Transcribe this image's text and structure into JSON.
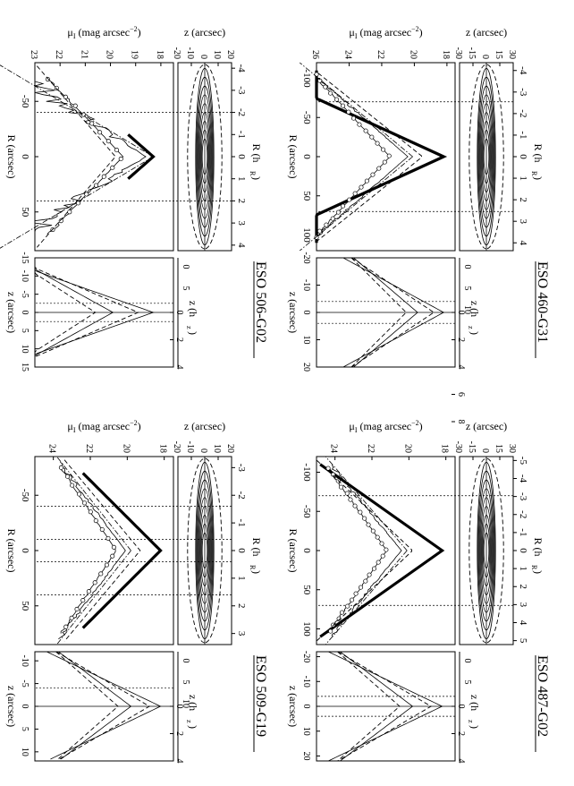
{
  "chart_data": [
    {
      "type": "line",
      "galaxy": "ESO 460-G31",
      "hR_label": "R (h",
      "hR_sub": "R",
      "hz_label": "z (h",
      "hz_sub": "z",
      "close_paren": ")",
      "R_label": "R (arcsec)",
      "z_label": "z (arcsec)",
      "mu_label": "μ",
      "mu_sub": "I",
      "mu_unit": " (mag arcsec",
      "mu_exp": "−2",
      "hR_ticks": [
        "-4",
        "-3",
        "-2",
        "-1",
        "0",
        "1",
        "2",
        "3",
        "4"
      ],
      "R_ticks": [
        "-100",
        "-50",
        "0",
        "50",
        "100"
      ],
      "z_map_ticks": [
        "-30",
        "-15",
        "0",
        "15",
        "30"
      ],
      "hz_map_ticks": [
        "0",
        "5",
        "10"
      ],
      "mu_ticks": [
        "18",
        "20",
        "22",
        "24",
        "26"
      ],
      "hz_prof_ticks": [
        "0",
        "2",
        "4",
        "6",
        "8"
      ],
      "z_prof_ticks": [
        "-20",
        "-10",
        "0",
        "10",
        "20"
      ],
      "R_range": [
        -120,
        120
      ],
      "mu_range": [
        26,
        17.5
      ],
      "z_range": [
        -30,
        30
      ],
      "zprof_range": [
        -20,
        20
      ],
      "hR_arcsec": 27.5,
      "mu_center": 18.2,
      "vertical_dotted_R": [
        -70,
        70
      ],
      "vertical_dotted_z": [
        -4,
        4
      ],
      "series": [
        {
          "name": "major-axis profile (thick)",
          "style": "bold",
          "mu0": 18.2,
          "slope": 0.105,
          "rmax": 110
        },
        {
          "name": "offset profile 1",
          "style": "thin",
          "mu0": 20.4,
          "slope": 0.055,
          "rmax": 110
        },
        {
          "name": "offset profile 2 (circles)",
          "style": "circles",
          "mu0": 21.5,
          "slope": 0.045,
          "rmax": 105
        },
        {
          "name": "model",
          "style": "dash",
          "mu0": 19.5,
          "slope": 0.06,
          "rmax": 115
        }
      ]
    },
    {
      "type": "line",
      "galaxy": "ESO 487-G02",
      "hR_label": "R (h",
      "hR_sub": "R",
      "hz_label": "z (h",
      "hz_sub": "z",
      "close_paren": ")",
      "R_label": "R (arcsec)",
      "z_label": "z (arcsec)",
      "mu_label": "μ",
      "mu_sub": "I",
      "mu_unit": " (mag arcsec",
      "mu_exp": "−2",
      "hR_ticks": [
        "-5",
        "-4",
        "-3",
        "-2",
        "-1",
        "0",
        "1",
        "2",
        "3",
        "4",
        "5"
      ],
      "R_ticks": [
        "-100",
        "-50",
        "0",
        "50",
        "100"
      ],
      "z_map_ticks": [
        "-30",
        "-15",
        "0",
        "15",
        "30"
      ],
      "hz_map_ticks": [
        "0",
        "5"
      ],
      "mu_ticks": [
        "18",
        "20",
        "22",
        "24"
      ],
      "hz_prof_ticks": [
        "0",
        "2",
        "4",
        "6"
      ],
      "z_prof_ticks": [
        "-20",
        "-10",
        "0",
        "10",
        "20"
      ],
      "R_range": [
        -120,
        120
      ],
      "mu_range": [
        25,
        17.5
      ],
      "z_range": [
        -30,
        30
      ],
      "zprof_range": [
        -22,
        22
      ],
      "hR_arcsec": 23,
      "mu_center": 18.2,
      "vertical_dotted_R": [
        -70,
        70
      ],
      "vertical_dotted_z": [
        -4,
        4
      ],
      "series": [
        {
          "name": "major-axis profile (thick)",
          "style": "bold",
          "mu0": 18.2,
          "slope": 0.06,
          "rmax": 110
        },
        {
          "name": "offset profile 1",
          "style": "thin",
          "mu0": 20.4,
          "slope": 0.035,
          "rmax": 110
        },
        {
          "name": "offset profile 2 (circles)",
          "style": "circles",
          "mu0": 21.2,
          "slope": 0.03,
          "rmax": 105
        },
        {
          "name": "model",
          "style": "dash",
          "mu0": 19.8,
          "slope": 0.045,
          "rmax": 115
        }
      ]
    },
    {
      "type": "line",
      "galaxy": "ESO 506-G02",
      "hR_label": "R (h",
      "hR_sub": "R",
      "hz_label": "z (h",
      "hz_sub": "z",
      "close_paren": ")",
      "R_label": "R (arcsec)",
      "z_label": "z (arcsec)",
      "mu_label": "μ",
      "mu_sub": "I",
      "mu_unit": " (mag arcsec",
      "mu_exp": "−2",
      "hR_ticks": [
        "-4",
        "-3",
        "-2",
        "-1",
        "0",
        "1",
        "2",
        "3",
        "4"
      ],
      "R_ticks": [
        "-50",
        "0",
        "50"
      ],
      "z_map_ticks": [
        "-20",
        "-10",
        "0",
        "10",
        "20"
      ],
      "hz_map_ticks": [
        "0",
        "5"
      ],
      "mu_ticks": [
        "18",
        "19",
        "20",
        "21",
        "22",
        "23"
      ],
      "hz_prof_ticks": [
        "0",
        "2",
        "4"
      ],
      "z_prof_ticks": [
        "-15",
        "-10",
        "-5",
        "0",
        "5",
        "10",
        "15"
      ],
      "R_range": [
        -85,
        85
      ],
      "mu_range": [
        23,
        17.5
      ],
      "z_range": [
        -20,
        20
      ],
      "zprof_range": [
        -15,
        15
      ],
      "hR_arcsec": 20,
      "mu_center": 18.3,
      "vertical_dotted_R": [
        -40,
        40
      ],
      "vertical_dotted_z": [
        -2.5,
        2.5
      ],
      "series": [
        {
          "name": "major-axis profile (thick)",
          "style": "bold",
          "mu0": 18.3,
          "slope": 0.05,
          "rmax": 20
        },
        {
          "name": "noisy profile",
          "style": "noisy",
          "mu0": 18.6,
          "slope": 0.07,
          "rmax": 80
        },
        {
          "name": "offset profile (circles)",
          "style": "circles",
          "mu0": 19.5,
          "slope": 0.042,
          "rmax": 70
        },
        {
          "name": "model",
          "style": "dash",
          "mu0": 19.8,
          "slope": 0.038,
          "rmax": 82
        }
      ]
    },
    {
      "type": "line",
      "galaxy": "ESO 509-G19",
      "hR_label": "R (h",
      "hR_sub": "R",
      "hz_label": "z (h",
      "hz_sub": "z",
      "close_paren": ")",
      "R_label": "R (arcsec)",
      "z_label": "z (arcsec)",
      "mu_label": "μ",
      "mu_sub": "I",
      "mu_unit": " (mag arcsec",
      "mu_exp": "−2",
      "hR_ticks": [
        "-3",
        "-2",
        "-1",
        "0",
        "1",
        "2",
        "3"
      ],
      "R_ticks": [
        "-50",
        "0",
        "50"
      ],
      "z_map_ticks": [
        "-20",
        "-10",
        "0",
        "10",
        "20"
      ],
      "hz_map_ticks": [
        "0",
        "5",
        "10"
      ],
      "mu_ticks": [
        "18",
        "20",
        "22",
        "24"
      ],
      "hz_prof_ticks": [
        "0",
        "2",
        "4"
      ],
      "z_prof_ticks": [
        "-10",
        "-5",
        "0",
        "5",
        "10"
      ],
      "R_range": [
        -85,
        85
      ],
      "mu_range": [
        25,
        17.5
      ],
      "z_range": [
        -20,
        20
      ],
      "zprof_range": [
        -12,
        12
      ],
      "hR_arcsec": 25,
      "mu_center": 18.2,
      "vertical_dotted_R": [
        -40,
        -10,
        10,
        40
      ],
      "vertical_dotted_z": [
        -4
      ],
      "series": [
        {
          "name": "major-axis profile (thick)",
          "style": "bold",
          "mu0": 18.2,
          "slope": 0.06,
          "rmax": 70
        },
        {
          "name": "offset profile 1",
          "style": "thin",
          "mu0": 20.1,
          "slope": 0.045,
          "rmax": 80
        },
        {
          "name": "offset profile 2 (circles)",
          "style": "circles",
          "mu0": 20.6,
          "slope": 0.04,
          "rmax": 75
        },
        {
          "name": "model",
          "style": "dash",
          "mu0": 19.3,
          "slope": 0.05,
          "rmax": 82
        }
      ]
    }
  ]
}
